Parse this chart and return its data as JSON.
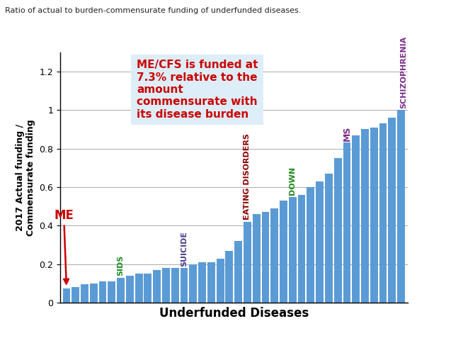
{
  "title": "Ratio of actual to burden-commensurate funding of underfunded diseases.",
  "xlabel": "Underfunded Diseases",
  "ylabel": "2017 Actual funding /\nCommensurate funding",
  "ylim": [
    0,
    1.3
  ],
  "yticks": [
    0,
    0.2,
    0.4,
    0.6,
    0.8,
    1.0,
    1.2
  ],
  "bar_color": "#5b9bd5",
  "bar_values": [
    0.073,
    0.08,
    0.095,
    0.1,
    0.11,
    0.11,
    0.13,
    0.14,
    0.15,
    0.15,
    0.17,
    0.18,
    0.18,
    0.18,
    0.2,
    0.21,
    0.21,
    0.23,
    0.27,
    0.32,
    0.42,
    0.46,
    0.47,
    0.49,
    0.53,
    0.55,
    0.56,
    0.6,
    0.63,
    0.67,
    0.75,
    0.83,
    0.87,
    0.9,
    0.91,
    0.93,
    0.96,
    1.0
  ],
  "labeled_bars": {
    "ME": {
      "index": 0,
      "color": "#cc0000",
      "fontsize": 12,
      "rotation": 0,
      "arrow": true
    },
    "SIDS": {
      "index": 6,
      "color": "#228B22",
      "fontsize": 8,
      "rotation": 90,
      "arrow": false
    },
    "SUICIDE": {
      "index": 13,
      "color": "#483D8B",
      "fontsize": 8,
      "rotation": 90,
      "arrow": false
    },
    "EATING DISORDERS": {
      "index": 20,
      "color": "#8B0000",
      "fontsize": 8,
      "rotation": 90,
      "arrow": false
    },
    "DOWN": {
      "index": 25,
      "color": "#228B22",
      "fontsize": 8,
      "rotation": 90,
      "arrow": false
    },
    "MS": {
      "index": 31,
      "color": "#7B2D8B",
      "fontsize": 9,
      "rotation": 90,
      "arrow": false
    },
    "SCHIZOPHRENIA": {
      "index": 37,
      "color": "#7B2D8B",
      "fontsize": 8,
      "rotation": 90,
      "arrow": false
    }
  },
  "textbox": {
    "text": "ME/CFS is funded at\n7.3% relative to the\namount\ncommensurate with\nits disease burden",
    "fontsize": 11,
    "color": "#cc0000",
    "bg_color": "#ddeef8",
    "fontweight": "bold"
  },
  "background_color": "#ffffff",
  "grid_color": "#aaaaaa"
}
